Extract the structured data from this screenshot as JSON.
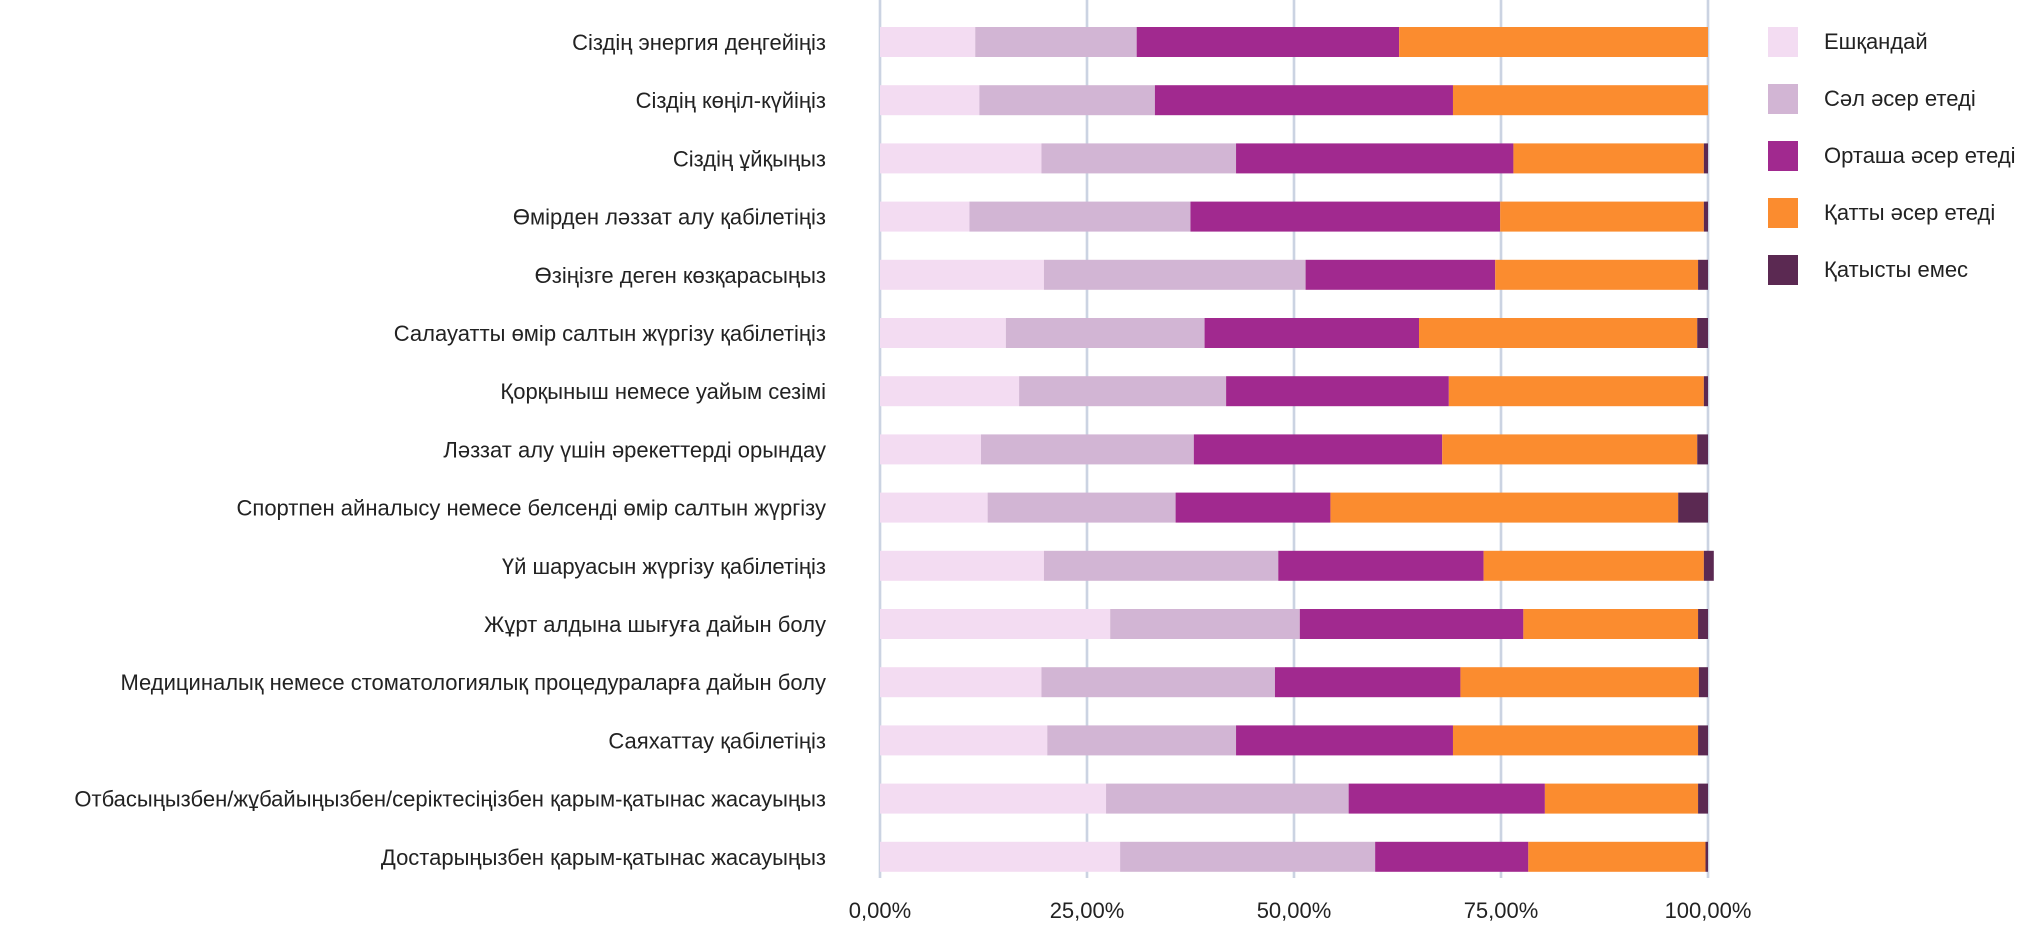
{
  "chart_data": {
    "type": "bar",
    "orientation": "horizontal",
    "stacked": true,
    "title": "",
    "xlabel": "",
    "ylabel": "",
    "xlim": [
      0,
      100
    ],
    "grid": true,
    "legend_position": "right",
    "x_ticks": [
      "0,00%",
      "25,00%",
      "50,00%",
      "75,00%",
      "100,00%"
    ],
    "categories": [
      "Сіздің энергия деңгейіңіз",
      "Сіздің көңіл-күйіңіз",
      "Сіздің ұйқыңыз",
      "Өмірден ләззат алу қабілетіңіз",
      "Өзіңізге деген көзқарасыңыз",
      "Салауатты өмір салтын жүргізу қабілетіңіз",
      "Қорқыныш немесе уайым сезімі",
      "Ләззат алу үшін әрекеттерді орындау",
      "Спортпен айналысу немесе белсенді өмір салтын жүргізу",
      "Үй шаруасын жүргізу қабілетіңіз",
      "Жұрт алдына шығуға дайын болу",
      "Медициналық немесе стоматологиялық процедураларға дайын болу",
      "Саяхаттау қабілетіңіз",
      "Отбасыңызбен/жұбайыңызбен/серіктесіңізбен қарым-қатынас жасауыңыз",
      "Достарыңызбен қарым-қатынас жасауыңыз"
    ],
    "series": [
      {
        "name": "Ешқандай",
        "color": "#f3dcf2",
        "values": [
          11.5,
          12.0,
          19.5,
          10.8,
          19.8,
          15.2,
          16.8,
          12.2,
          13.0,
          19.8,
          27.8,
          19.5,
          20.2,
          27.3,
          29.0
        ]
      },
      {
        "name": "Сәл әсер етеді",
        "color": "#d2b5d4",
        "values": [
          19.5,
          21.2,
          23.5,
          26.7,
          31.6,
          24.0,
          25.0,
          25.7,
          22.7,
          28.3,
          22.9,
          28.2,
          22.8,
          29.3,
          30.8
        ]
      },
      {
        "name": "Орташа әсер етеді",
        "color": "#a1298f",
        "values": [
          31.7,
          36.0,
          33.5,
          37.4,
          22.9,
          25.9,
          26.9,
          30.0,
          18.7,
          24.8,
          27.0,
          22.4,
          26.2,
          23.7,
          18.5
        ]
      },
      {
        "name": "Қатты әсер етеді",
        "color": "#fb8c2f",
        "values": [
          37.3,
          30.8,
          23.0,
          24.6,
          24.5,
          33.6,
          30.8,
          30.8,
          42.0,
          26.6,
          21.1,
          28.8,
          29.6,
          18.5,
          21.4
        ]
      },
      {
        "name": "Қатысты емес",
        "color": "#5b2952",
        "values": [
          0,
          0,
          0.5,
          0.5,
          1.2,
          1.3,
          0.5,
          1.3,
          3.6,
          1.2,
          1.2,
          1.1,
          1.2,
          1.2,
          0.3
        ]
      }
    ]
  }
}
